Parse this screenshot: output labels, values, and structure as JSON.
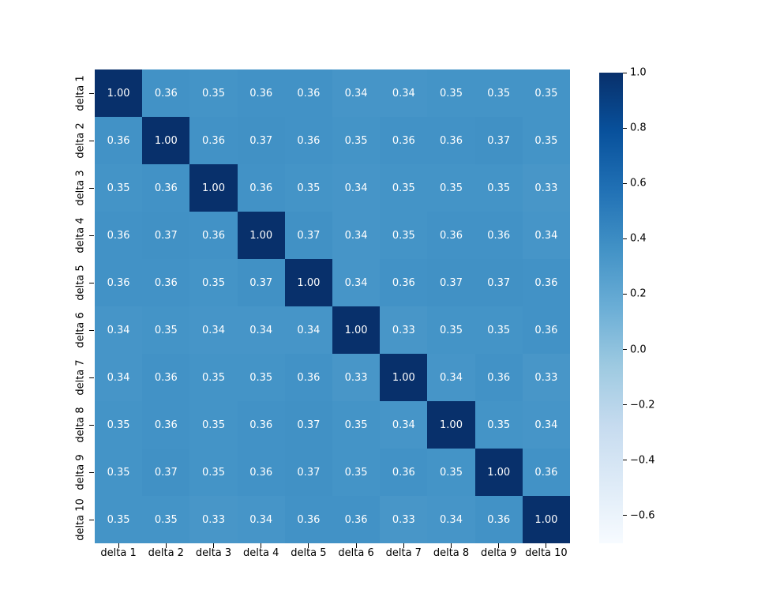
{
  "figure": {
    "background": "#ffffff",
    "axis_text_color": "#000000"
  },
  "chart_data": {
    "type": "heatmap",
    "title": "",
    "xlabel": "",
    "ylabel": "",
    "x_categories": [
      "delta 1",
      "delta 2",
      "delta 3",
      "delta 4",
      "delta 5",
      "delta 6",
      "delta 7",
      "delta 8",
      "delta 9",
      "delta 10"
    ],
    "y_categories": [
      "delta 1",
      "delta 2",
      "delta 3",
      "delta 4",
      "delta 5",
      "delta 6",
      "delta 7",
      "delta 8",
      "delta 9",
      "delta 10"
    ],
    "matrix": [
      [
        1.0,
        0.36,
        0.35,
        0.36,
        0.36,
        0.34,
        0.34,
        0.35,
        0.35,
        0.35
      ],
      [
        0.36,
        1.0,
        0.36,
        0.37,
        0.36,
        0.35,
        0.36,
        0.36,
        0.37,
        0.35
      ],
      [
        0.35,
        0.36,
        1.0,
        0.36,
        0.35,
        0.34,
        0.35,
        0.35,
        0.35,
        0.33
      ],
      [
        0.36,
        0.37,
        0.36,
        1.0,
        0.37,
        0.34,
        0.35,
        0.36,
        0.36,
        0.34
      ],
      [
        0.36,
        0.36,
        0.35,
        0.37,
        1.0,
        0.34,
        0.36,
        0.37,
        0.37,
        0.36
      ],
      [
        0.34,
        0.35,
        0.34,
        0.34,
        0.34,
        1.0,
        0.33,
        0.35,
        0.35,
        0.36
      ],
      [
        0.34,
        0.36,
        0.35,
        0.35,
        0.36,
        0.33,
        1.0,
        0.34,
        0.36,
        0.33
      ],
      [
        0.35,
        0.36,
        0.35,
        0.36,
        0.37,
        0.35,
        0.34,
        1.0,
        0.35,
        0.34
      ],
      [
        0.35,
        0.37,
        0.35,
        0.36,
        0.37,
        0.35,
        0.36,
        0.35,
        1.0,
        0.36
      ],
      [
        0.35,
        0.35,
        0.33,
        0.34,
        0.36,
        0.36,
        0.33,
        0.34,
        0.36,
        1.0
      ]
    ],
    "annotation_decimals": 2,
    "annotation_color": "#ffffff",
    "vmin": -0.7,
    "vmax": 1.0,
    "colormap_name": "Blues",
    "colormap_stops": [
      {
        "t": 0.0,
        "color": "#f7fbff"
      },
      {
        "t": 0.125,
        "color": "#deebf7"
      },
      {
        "t": 0.25,
        "color": "#c6dbef"
      },
      {
        "t": 0.375,
        "color": "#9ecae1"
      },
      {
        "t": 0.5,
        "color": "#6baed6"
      },
      {
        "t": 0.625,
        "color": "#4292c6"
      },
      {
        "t": 0.75,
        "color": "#2171b5"
      },
      {
        "t": 0.875,
        "color": "#08519c"
      },
      {
        "t": 1.0,
        "color": "#08306b"
      }
    ],
    "colorbar_position": "right",
    "colorbar_ticks": [
      {
        "value": 1.0,
        "label": "1.0"
      },
      {
        "value": 0.8,
        "label": "0.8"
      },
      {
        "value": 0.6,
        "label": "0.6"
      },
      {
        "value": 0.4,
        "label": "0.4"
      },
      {
        "value": 0.2,
        "label": "0.2"
      },
      {
        "value": 0.0,
        "label": "0.0"
      },
      {
        "value": -0.2,
        "label": "−0.2"
      },
      {
        "value": -0.4,
        "label": "−0.4"
      },
      {
        "value": -0.6,
        "label": "−0.6"
      }
    ],
    "grid": false
  }
}
